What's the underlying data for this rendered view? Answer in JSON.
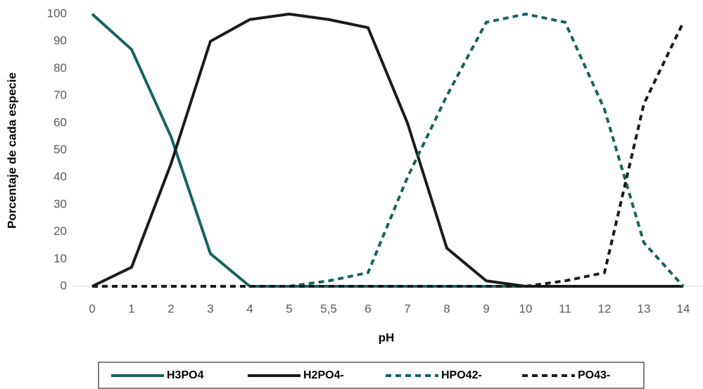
{
  "chart_data": {
    "type": "line",
    "x_label": "pH",
    "y_label": "Porcentaje de cada especie",
    "categories": [
      "0",
      "1",
      "2",
      "3",
      "4",
      "5",
      "5,5",
      "6",
      "7",
      "8",
      "9",
      "10",
      "11",
      "12",
      "13",
      "14"
    ],
    "series": [
      {
        "name": "H3PO4",
        "color": "#17635f",
        "dashed": false,
        "values": [
          100,
          87,
          55,
          12,
          0,
          0,
          0,
          0,
          0,
          0,
          0,
          0,
          0,
          0,
          0,
          0
        ]
      },
      {
        "name": "H2PO4-",
        "color": "#1a1a1a",
        "dashed": false,
        "values": [
          0,
          7,
          45,
          90,
          98,
          100,
          98,
          95,
          60,
          14,
          2,
          0,
          0,
          0,
          0,
          0
        ]
      },
      {
        "name": "HPO42-",
        "color": "#17635f",
        "dashed": true,
        "values": [
          0,
          0,
          0,
          0,
          0,
          0,
          2,
          5,
          40,
          70,
          97,
          100,
          97,
          65,
          16,
          0
        ]
      },
      {
        "name": "PO43-",
        "color": "#1a1a1a",
        "dashed": true,
        "values": [
          0,
          0,
          0,
          0,
          0,
          0,
          0,
          0,
          0,
          0,
          0,
          0,
          2,
          5,
          67,
          97
        ]
      }
    ],
    "ylim": [
      0,
      100
    ],
    "yticks": [
      0,
      10,
      20,
      30,
      40,
      50,
      60,
      70,
      80,
      90,
      100
    ],
    "grid": false,
    "legend": "bottom"
  }
}
